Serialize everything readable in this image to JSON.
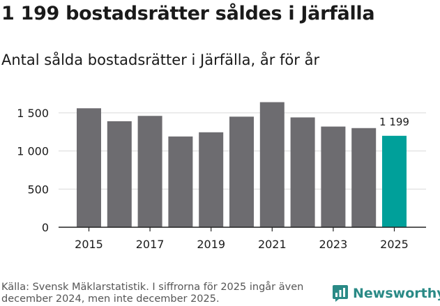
{
  "title": "1 199 bostadsrätter såldes i Järfälla",
  "subtitle": "Antal sålda bostadsrätter i Järfälla, år för år",
  "source": "Källa: Svensk Mäklarstatistik. I siffrorna för 2025 ingår även december 2024, men inte december 2025.",
  "brand": {
    "name": "Newsworthy",
    "icon": "newsworthy-logo-icon",
    "color": "#2a8a86"
  },
  "colors": {
    "bar": "#6d6c70",
    "highlight": "#00a09a",
    "grid": "#d9d9d9",
    "axis": "#222222",
    "text": "#1a1a1a"
  },
  "chart_data": {
    "type": "bar",
    "title": "Antal sålda bostadsrätter i Järfälla, år för år",
    "xlabel": "",
    "ylabel": "",
    "categories": [
      "2015",
      "2016",
      "2017",
      "2018",
      "2019",
      "2020",
      "2021",
      "2022",
      "2023",
      "2024",
      "2025"
    ],
    "values": [
      1560,
      1390,
      1460,
      1190,
      1245,
      1450,
      1640,
      1440,
      1320,
      1300,
      1199
    ],
    "highlight_index": 10,
    "highlight_label": "1 199",
    "x_tick_labels": [
      "2015",
      "2017",
      "2019",
      "2021",
      "2023",
      "2025"
    ],
    "y_ticks": [
      0,
      500,
      1000,
      1500
    ],
    "y_tick_labels": [
      "0",
      "500",
      "1 000",
      "1 500"
    ],
    "ylim": [
      0,
      1700
    ],
    "grid": true
  }
}
